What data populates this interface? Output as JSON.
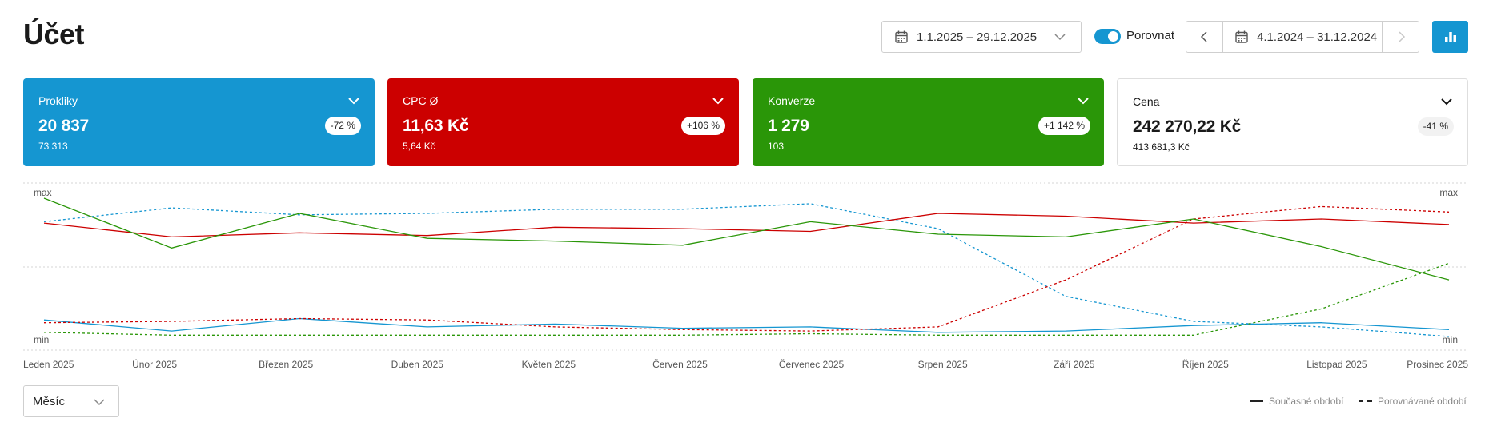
{
  "header": {
    "title": "Účet",
    "current_range": "1.1.2025 – 29.12.2025",
    "compare_label": "Porovnat",
    "compare_range": "4.1.2024 – 31.12.2024"
  },
  "cards": [
    {
      "label": "Prokliky",
      "value": "20 837",
      "prev": "73 313",
      "change": "-72 %",
      "color": "#1596d1"
    },
    {
      "label": "CPC Ø",
      "value": "11,63 Kč",
      "prev": "5,64 Kč",
      "change": "+106 %",
      "color": "#cc0000"
    },
    {
      "label": "Konverze",
      "value": "1 279",
      "prev": "103",
      "change": "+1 142 %",
      "color": "#2a9608"
    },
    {
      "label": "Cena",
      "value": "242 270,22 Kč",
      "prev": "413 681,3 Kč",
      "change": "-41 %",
      "color": "#ffffff"
    }
  ],
  "chart_data": {
    "type": "line",
    "categories": [
      "Leden 2025",
      "Únor 2025",
      "Březen 2025",
      "Duben 2025",
      "Květen 2025",
      "Červen 2025",
      "Červenec 2025",
      "Srpen 2025",
      "Září 2025",
      "Říjen 2025",
      "Listopad 2025",
      "Prosinec 2025"
    ],
    "y_axis_labels": {
      "top": "max",
      "bottom": "min"
    },
    "normalized_scale": [
      0,
      1
    ],
    "grid": "horizontal dotted",
    "series": [
      {
        "metric": "Prokliky",
        "period": "current",
        "style": "solid",
        "color": "#1596d1",
        "values": [
          0.12,
          0.04,
          0.13,
          0.07,
          0.09,
          0.06,
          0.07,
          0.03,
          0.04,
          0.08,
          0.1,
          0.05
        ]
      },
      {
        "metric": "Prokliky",
        "period": "compared",
        "style": "dashed",
        "color": "#1596d1",
        "values": [
          0.83,
          0.93,
          0.88,
          0.89,
          0.92,
          0.92,
          0.96,
          0.78,
          0.29,
          0.11,
          0.07,
          0.0
        ]
      },
      {
        "metric": "CPC Ø",
        "period": "current",
        "style": "solid",
        "color": "#cc0000",
        "values": [
          0.82,
          0.72,
          0.75,
          0.73,
          0.79,
          0.78,
          0.76,
          0.89,
          0.87,
          0.82,
          0.85,
          0.81
        ]
      },
      {
        "metric": "CPC Ø",
        "period": "compared",
        "style": "dashed",
        "color": "#cc0000",
        "values": [
          0.1,
          0.11,
          0.13,
          0.12,
          0.07,
          0.05,
          0.04,
          0.07,
          0.41,
          0.85,
          0.94,
          0.9
        ]
      },
      {
        "metric": "Konverze",
        "period": "current",
        "style": "solid",
        "color": "#2a9608",
        "values": [
          1.0,
          0.64,
          0.89,
          0.71,
          0.69,
          0.66,
          0.83,
          0.74,
          0.72,
          0.85,
          0.65,
          0.41
        ]
      },
      {
        "metric": "Konverze",
        "period": "compared",
        "style": "dashed",
        "color": "#2a9608",
        "values": [
          0.03,
          0.01,
          0.01,
          0.01,
          0.01,
          0.01,
          0.02,
          0.01,
          0.01,
          0.01,
          0.2,
          0.53
        ]
      }
    ]
  },
  "footer": {
    "granularity": "Měsíc",
    "legend_current": "Současné období",
    "legend_compared": "Porovnávané období"
  }
}
